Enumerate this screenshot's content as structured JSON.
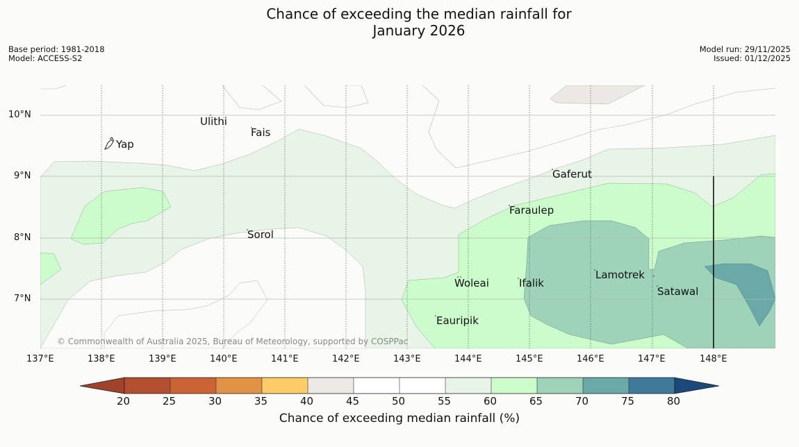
{
  "title": {
    "line1": "Chance of exceeding the median rainfall for",
    "line2": "January 2026"
  },
  "meta_left": {
    "base_period": "Base period: 1981-2018",
    "model": "Model: ACCESS-S2"
  },
  "meta_right": {
    "model_run": "Model run: 29/11/2025",
    "issued": "Issued: 01/12/2025"
  },
  "map": {
    "lon_ticks": [
      "137°E",
      "138°E",
      "139°E",
      "140°E",
      "141°E",
      "142°E",
      "143°E",
      "144°E",
      "145°E",
      "146°E",
      "147°E",
      "148°E"
    ],
    "lat_ticks": [
      "10°N",
      "9°N",
      "8°N",
      "7°N"
    ],
    "places": {
      "yap": "Yap",
      "ulithi": "Ulithi",
      "fais": "Fais",
      "gaferut": "Gaferut",
      "faraulep": "Faraulep",
      "sorol": "Sorol",
      "lamotrek": "Lamotrek",
      "woleai": "Woleai",
      "ifalik": "Ifalik",
      "satawal": "Satawal",
      "eauripik": "Eauripik"
    },
    "copyright": "© Commonwealth of Australia 2025, Bureau of Meteorology, supported by COSPPac",
    "colors": {
      "sea_background": "#fbfcfa",
      "band_40_45": "#ece9e4",
      "band_45_55": "#fbfcfa",
      "band_55_60": "#e9f4e8",
      "band_60_65": "#ccfccc",
      "band_65_70": "#9ed2b9",
      "band_70_75": "#6ba8a8"
    }
  },
  "colorbar": {
    "labels": [
      "20",
      "25",
      "30",
      "35",
      "40",
      "45",
      "50",
      "55",
      "60",
      "65",
      "70",
      "75",
      "80"
    ],
    "colors": [
      "#a0432a",
      "#b34e2e",
      "#cc6334",
      "#e29244",
      "#fdcc67",
      "#ece9e4",
      "#ffffff",
      "#ffffff",
      "#e9f4e8",
      "#ccfccc",
      "#9ed2b9",
      "#6ba8a8",
      "#3f7a9a",
      "#1a4a7c"
    ],
    "title": "Chance of exceeding median rainfall (%)"
  }
}
